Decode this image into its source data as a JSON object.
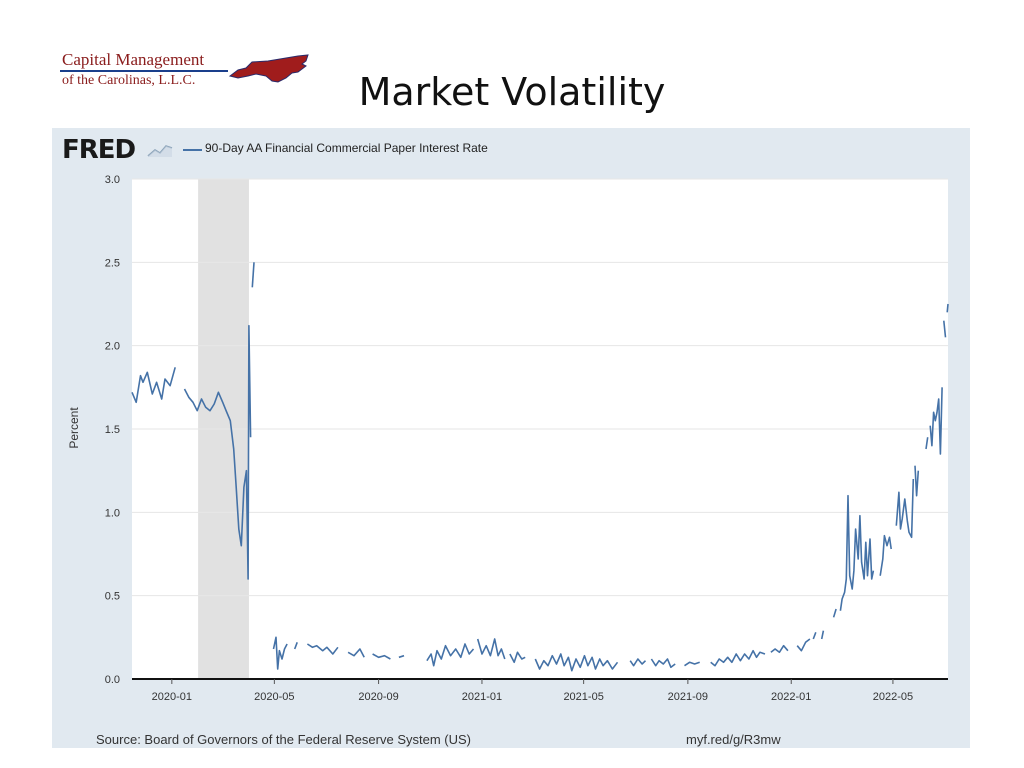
{
  "logo": {
    "line1": "Capital Management",
    "line2": "of the Carolinas, L.L.C.",
    "colors": {
      "text": "#8a1c1c",
      "rule": "#1a3f8c",
      "map": "#a01c1c"
    }
  },
  "slide_title": "Market Volatility",
  "fred": {
    "logo_text": "FRED",
    "mini_icon": "chart-line-icon",
    "legend_label": "90-Day AA Financial Commercial Paper Interest Rate",
    "series_color": "#4572a7",
    "panel_color": "#e1e9f0",
    "recession_color": "#e1e1e1"
  },
  "source_text": "Source: Board of Governors of the Federal Reserve System (US)",
  "url_text": "myf.red/g/R3mw",
  "chart_data": {
    "type": "line",
    "ylabel": "Percent",
    "ylim": [
      0,
      3.0
    ],
    "yticks": [
      "0.0",
      "0.5",
      "1.0",
      "1.5",
      "2.0",
      "2.5",
      "3.0"
    ],
    "xticks": [
      "2020-01",
      "2020-05",
      "2020-09",
      "2021-01",
      "2021-05",
      "2021-09",
      "2022-01",
      "2022-05"
    ],
    "x_range": [
      "2019-11-15",
      "2022-07-05"
    ],
    "grid": true,
    "recession_shading": {
      "start": "2020-02-01",
      "end": "2020-04-01"
    },
    "series": [
      {
        "name": "90-Day AA Financial Commercial Paper Interest Rate",
        "segments": [
          [
            [
              "2019-11-15",
              1.72
            ],
            [
              "2019-11-20",
              1.66
            ],
            [
              "2019-11-25",
              1.82
            ],
            [
              "2019-11-28",
              1.78
            ],
            [
              "2019-12-03",
              1.84
            ],
            [
              "2019-12-09",
              1.71
            ],
            [
              "2019-12-14",
              1.78
            ],
            [
              "2019-12-20",
              1.68
            ],
            [
              "2019-12-24",
              1.8
            ],
            [
              "2019-12-30",
              1.76
            ],
            [
              "2020-01-05",
              1.87
            ]
          ],
          [
            [
              "2020-01-16",
              1.74
            ],
            [
              "2020-01-21",
              1.69
            ],
            [
              "2020-01-26",
              1.66
            ],
            [
              "2020-01-31",
              1.61
            ],
            [
              "2020-02-05",
              1.68
            ],
            [
              "2020-02-10",
              1.63
            ],
            [
              "2020-02-15",
              1.61
            ],
            [
              "2020-02-20",
              1.65
            ],
            [
              "2020-02-25",
              1.72
            ],
            [
              "2020-03-01",
              1.66
            ],
            [
              "2020-03-05",
              1.61
            ],
            [
              "2020-03-10",
              1.55
            ],
            [
              "2020-03-14",
              1.38
            ],
            [
              "2020-03-17",
              1.15
            ],
            [
              "2020-03-20",
              0.9
            ],
            [
              "2020-03-23",
              0.8
            ],
            [
              "2020-03-26",
              1.15
            ],
            [
              "2020-03-29",
              1.25
            ],
            [
              "2020-03-31",
              0.6
            ],
            [
              "2020-04-01",
              2.12
            ],
            [
              "2020-04-03",
              1.45
            ]
          ],
          [
            [
              "2020-04-05",
              2.35
            ],
            [
              "2020-04-07",
              2.5
            ]
          ],
          [
            [
              "2020-04-30",
              0.18
            ],
            [
              "2020-05-03",
              0.25
            ],
            [
              "2020-05-05",
              0.06
            ],
            [
              "2020-05-07",
              0.17
            ],
            [
              "2020-05-10",
              0.12
            ],
            [
              "2020-05-13",
              0.18
            ],
            [
              "2020-05-16",
              0.21
            ]
          ],
          [
            [
              "2020-05-25",
              0.18
            ],
            [
              "2020-05-28",
              0.22
            ]
          ],
          [
            [
              "2020-06-09",
              0.21
            ],
            [
              "2020-06-15",
              0.19
            ],
            [
              "2020-06-20",
              0.2
            ],
            [
              "2020-06-27",
              0.17
            ],
            [
              "2020-07-02",
              0.19
            ],
            [
              "2020-07-09",
              0.15
            ],
            [
              "2020-07-15",
              0.19
            ]
          ],
          [
            [
              "2020-07-27",
              0.16
            ],
            [
              "2020-08-03",
              0.14
            ],
            [
              "2020-08-10",
              0.18
            ],
            [
              "2020-08-15",
              0.13
            ]
          ],
          [
            [
              "2020-08-25",
              0.15
            ],
            [
              "2020-09-01",
              0.13
            ],
            [
              "2020-09-08",
              0.14
            ],
            [
              "2020-09-15",
              0.12
            ]
          ],
          [
            [
              "2020-09-25",
              0.13
            ],
            [
              "2020-10-01",
              0.14
            ]
          ],
          [
            [
              "2020-10-28",
              0.11
            ],
            [
              "2020-11-02",
              0.15
            ],
            [
              "2020-11-05",
              0.08
            ],
            [
              "2020-11-09",
              0.17
            ],
            [
              "2020-11-14",
              0.12
            ],
            [
              "2020-11-19",
              0.2
            ],
            [
              "2020-11-25",
              0.14
            ],
            [
              "2020-12-01",
              0.18
            ],
            [
              "2020-12-07",
              0.13
            ],
            [
              "2020-12-12",
              0.21
            ],
            [
              "2020-12-17",
              0.15
            ],
            [
              "2020-12-22",
              0.18
            ]
          ],
          [
            [
              "2020-12-27",
              0.24
            ],
            [
              "2021-01-01",
              0.15
            ],
            [
              "2021-01-06",
              0.2
            ],
            [
              "2021-01-11",
              0.14
            ],
            [
              "2021-01-16",
              0.24
            ],
            [
              "2021-01-20",
              0.14
            ],
            [
              "2021-01-24",
              0.18
            ],
            [
              "2021-01-28",
              0.12
            ]
          ],
          [
            [
              "2021-02-03",
              0.15
            ],
            [
              "2021-02-08",
              0.1
            ],
            [
              "2021-02-12",
              0.16
            ],
            [
              "2021-02-17",
              0.12
            ],
            [
              "2021-02-21",
              0.13
            ]
          ],
          [
            [
              "2021-03-05",
              0.12
            ],
            [
              "2021-03-10",
              0.06
            ],
            [
              "2021-03-15",
              0.11
            ],
            [
              "2021-03-20",
              0.08
            ],
            [
              "2021-03-25",
              0.14
            ],
            [
              "2021-03-30",
              0.09
            ],
            [
              "2021-04-04",
              0.15
            ],
            [
              "2021-04-08",
              0.08
            ],
            [
              "2021-04-13",
              0.13
            ],
            [
              "2021-04-17",
              0.05
            ],
            [
              "2021-04-22",
              0.12
            ],
            [
              "2021-04-27",
              0.07
            ],
            [
              "2021-05-02",
              0.14
            ],
            [
              "2021-05-06",
              0.08
            ],
            [
              "2021-05-11",
              0.13
            ],
            [
              "2021-05-15",
              0.06
            ],
            [
              "2021-05-20",
              0.12
            ],
            [
              "2021-05-24",
              0.08
            ],
            [
              "2021-05-29",
              0.11
            ],
            [
              "2021-06-04",
              0.06
            ],
            [
              "2021-06-10",
              0.1
            ]
          ],
          [
            [
              "2021-06-25",
              0.11
            ],
            [
              "2021-06-29",
              0.08
            ],
            [
              "2021-07-04",
              0.12
            ],
            [
              "2021-07-09",
              0.09
            ],
            [
              "2021-07-13",
              0.11
            ]
          ],
          [
            [
              "2021-07-20",
              0.12
            ],
            [
              "2021-07-25",
              0.08
            ],
            [
              "2021-07-29",
              0.11
            ],
            [
              "2021-08-03",
              0.09
            ],
            [
              "2021-08-08",
              0.12
            ],
            [
              "2021-08-12",
              0.07
            ],
            [
              "2021-08-17",
              0.09
            ]
          ],
          [
            [
              "2021-08-28",
              0.08
            ],
            [
              "2021-09-03",
              0.1
            ],
            [
              "2021-09-09",
              0.09
            ],
            [
              "2021-09-15",
              0.1
            ]
          ],
          [
            [
              "2021-09-28",
              0.1
            ],
            [
              "2021-10-03",
              0.08
            ],
            [
              "2021-10-08",
              0.12
            ],
            [
              "2021-10-13",
              0.1
            ],
            [
              "2021-10-18",
              0.13
            ],
            [
              "2021-10-23",
              0.1
            ],
            [
              "2021-10-28",
              0.15
            ],
            [
              "2021-11-02",
              0.11
            ],
            [
              "2021-11-07",
              0.15
            ],
            [
              "2021-11-12",
              0.12
            ],
            [
              "2021-11-17",
              0.17
            ],
            [
              "2021-11-21",
              0.13
            ],
            [
              "2021-11-25",
              0.16
            ],
            [
              "2021-12-01",
              0.15
            ]
          ],
          [
            [
              "2021-12-08",
              0.16
            ],
            [
              "2021-12-13",
              0.18
            ],
            [
              "2021-12-18",
              0.16
            ],
            [
              "2021-12-23",
              0.2
            ],
            [
              "2021-12-28",
              0.17
            ]
          ],
          [
            [
              "2022-01-08",
              0.2
            ],
            [
              "2022-01-13",
              0.17
            ],
            [
              "2022-01-18",
              0.22
            ],
            [
              "2022-01-23",
              0.24
            ]
          ],
          [
            [
              "2022-01-27",
              0.24
            ],
            [
              "2022-01-30",
              0.28
            ]
          ],
          [
            [
              "2022-02-06",
              0.24
            ],
            [
              "2022-02-08",
              0.29
            ]
          ],
          [
            [
              "2022-02-20",
              0.37
            ],
            [
              "2022-02-23",
              0.42
            ]
          ],
          [
            [
              "2022-02-28",
              0.41
            ],
            [
              "2022-03-02",
              0.48
            ],
            [
              "2022-03-05",
              0.52
            ],
            [
              "2022-03-07",
              0.6
            ],
            [
              "2022-03-09",
              1.1
            ],
            [
              "2022-03-11",
              0.62
            ],
            [
              "2022-03-14",
              0.54
            ],
            [
              "2022-03-16",
              0.65
            ],
            [
              "2022-03-18",
              0.9
            ],
            [
              "2022-03-21",
              0.72
            ],
            [
              "2022-03-23",
              0.98
            ],
            [
              "2022-03-25",
              0.7
            ],
            [
              "2022-03-28",
              0.6
            ],
            [
              "2022-03-30",
              0.82
            ],
            [
              "2022-04-01",
              0.62
            ],
            [
              "2022-04-04",
              0.84
            ],
            [
              "2022-04-06",
              0.6
            ],
            [
              "2022-04-08",
              0.65
            ]
          ],
          [
            [
              "2022-04-16",
              0.62
            ],
            [
              "2022-04-19",
              0.72
            ],
            [
              "2022-04-21",
              0.86
            ],
            [
              "2022-04-24",
              0.8
            ],
            [
              "2022-04-27",
              0.85
            ],
            [
              "2022-04-29",
              0.78
            ]
          ],
          [
            [
              "2022-05-05",
              0.92
            ],
            [
              "2022-05-08",
              1.12
            ],
            [
              "2022-05-10",
              0.9
            ],
            [
              "2022-05-12",
              0.96
            ],
            [
              "2022-05-15",
              1.08
            ],
            [
              "2022-05-18",
              0.95
            ],
            [
              "2022-05-20",
              0.88
            ],
            [
              "2022-05-23",
              0.85
            ],
            [
              "2022-05-25",
              1.2
            ]
          ],
          [
            [
              "2022-05-27",
              1.28
            ],
            [
              "2022-05-29",
              1.1
            ],
            [
              "2022-05-31",
              1.25
            ]
          ],
          [
            [
              "2022-06-09",
              1.38
            ],
            [
              "2022-06-11",
              1.45
            ]
          ],
          [
            [
              "2022-06-14",
              1.52
            ],
            [
              "2022-06-16",
              1.4
            ],
            [
              "2022-06-18",
              1.6
            ],
            [
              "2022-06-20",
              1.55
            ],
            [
              "2022-06-22",
              1.6
            ],
            [
              "2022-06-24",
              1.68
            ],
            [
              "2022-06-26",
              1.35
            ],
            [
              "2022-06-28",
              1.75
            ]
          ],
          [
            [
              "2022-06-30",
              2.15
            ],
            [
              "2022-07-02",
              2.05
            ]
          ],
          [
            [
              "2022-07-04",
              2.2
            ],
            [
              "2022-07-05",
              2.25
            ]
          ]
        ]
      }
    ]
  }
}
